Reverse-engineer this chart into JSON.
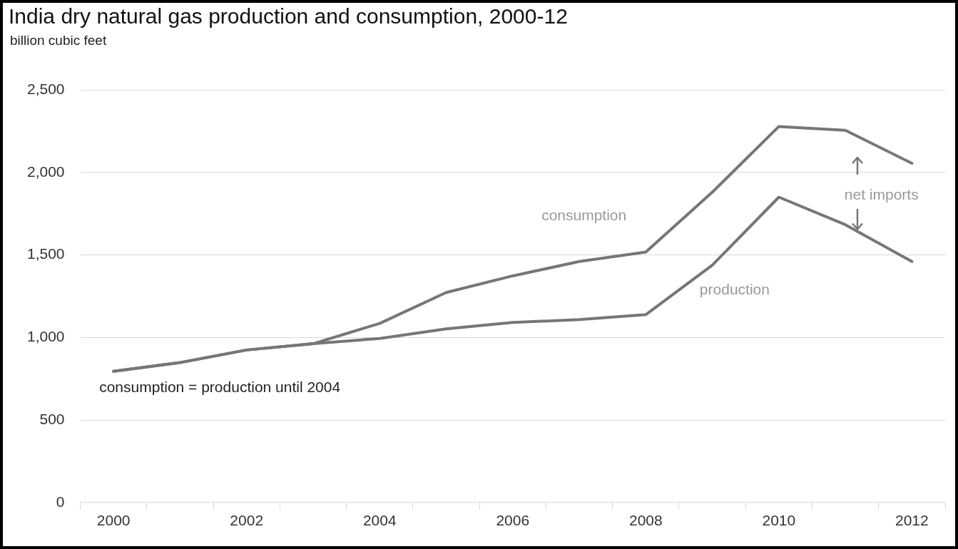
{
  "chart_data": {
    "type": "line",
    "title": "India dry natural gas production and consumption, 2000-12",
    "subtitle": "billion cubic feet",
    "categories": [
      "2000",
      null,
      "2002",
      null,
      "2004",
      null,
      "2006",
      null,
      "2008",
      null,
      "2010",
      null,
      "2012"
    ],
    "series": [
      {
        "name": "consumption",
        "color": "#767676",
        "values": [
          795,
          848,
          924,
          962,
          1085,
          1272,
          1373,
          1460,
          1517,
          1880,
          2278,
          2255,
          2055
        ]
      },
      {
        "name": "production",
        "color": "#767676",
        "values": [
          795,
          848,
          924,
          962,
          994,
          1052,
          1091,
          1108,
          1138,
          1438,
          1850,
          1683,
          1460
        ]
      }
    ],
    "ylim": [
      0,
      2500
    ],
    "yticks": [
      {
        "value": 0,
        "label": "0"
      },
      {
        "value": 500,
        "label": "500"
      },
      {
        "value": 1000,
        "label": "1,000"
      },
      {
        "value": 1500,
        "label": "1,500"
      },
      {
        "value": 2000,
        "label": "2,000"
      },
      {
        "value": 2500,
        "label": "2,500"
      }
    ],
    "grid": "y",
    "legend": false,
    "marker": "none",
    "line_style": "solid",
    "annotations": [
      "consumption = production until 2004",
      "net imports"
    ]
  }
}
